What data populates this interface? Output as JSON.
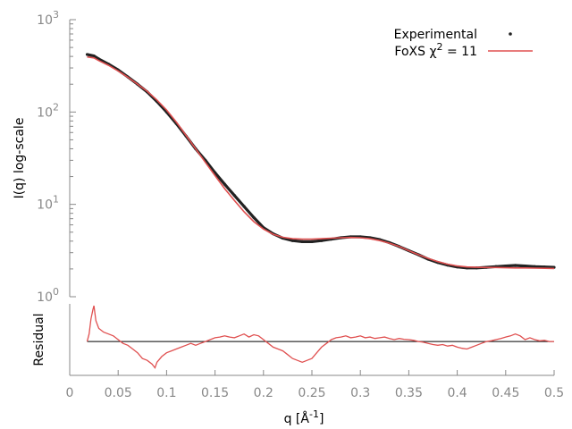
{
  "colors": {
    "experimental": "#222222",
    "fit": "#e05050",
    "residual": "#e05050",
    "zero_line": "#000000",
    "axis": "#888888"
  },
  "chart_data": [
    {
      "type": "line",
      "panel": "top",
      "xlabel": "",
      "ylabel": "I(q) log-scale",
      "yscale": "log",
      "xlim": [
        0,
        0.5
      ],
      "ylim": [
        1,
        1000
      ],
      "x_ticks": [
        "0",
        "0.05",
        "0.1",
        "0.15",
        "0.2",
        "0.25",
        "0.3",
        "0.35",
        "0.4",
        "0.45",
        "0.5"
      ],
      "y_ticks": [
        {
          "value": 1,
          "base": "10",
          "exp": "0"
        },
        {
          "value": 10,
          "base": "10",
          "exp": "1"
        },
        {
          "value": 100,
          "base": "10",
          "exp": "2"
        },
        {
          "value": 1000,
          "base": "10",
          "exp": "3"
        }
      ],
      "legend": {
        "placement": "top-right",
        "entries": [
          {
            "label": "Experimental",
            "marker": "dots"
          },
          {
            "label_prefix": "FoXS χ",
            "label_sup": "2",
            "label_suffix": " = 11",
            "marker": "line"
          }
        ]
      },
      "series": [
        {
          "name": "Experimental",
          "style": "dots",
          "x": [
            0.018,
            0.025,
            0.03,
            0.04,
            0.05,
            0.06,
            0.07,
            0.08,
            0.09,
            0.1,
            0.11,
            0.12,
            0.13,
            0.14,
            0.15,
            0.16,
            0.17,
            0.18,
            0.19,
            0.2,
            0.21,
            0.22,
            0.23,
            0.24,
            0.25,
            0.26,
            0.27,
            0.28,
            0.29,
            0.3,
            0.31,
            0.32,
            0.33,
            0.34,
            0.35,
            0.36,
            0.37,
            0.38,
            0.39,
            0.4,
            0.41,
            0.42,
            0.43,
            0.44,
            0.45,
            0.46,
            0.47,
            0.48,
            0.49,
            0.5
          ],
          "y": [
            420,
            405,
            375,
            330,
            285,
            240,
            200,
            165,
            130,
            100,
            75,
            55,
            40,
            30,
            22,
            16.5,
            12.5,
            9.5,
            7.2,
            5.6,
            4.8,
            4.3,
            4.05,
            3.95,
            3.95,
            4.05,
            4.2,
            4.35,
            4.45,
            4.45,
            4.35,
            4.15,
            3.85,
            3.5,
            3.15,
            2.85,
            2.55,
            2.35,
            2.2,
            2.1,
            2.05,
            2.05,
            2.08,
            2.12,
            2.15,
            2.18,
            2.15,
            2.12,
            2.1,
            2.08
          ]
        },
        {
          "name": "FoXS χ2 = 11",
          "style": "line",
          "x": [
            0.018,
            0.025,
            0.03,
            0.04,
            0.05,
            0.06,
            0.07,
            0.08,
            0.09,
            0.1,
            0.11,
            0.12,
            0.13,
            0.14,
            0.15,
            0.16,
            0.17,
            0.18,
            0.19,
            0.2,
            0.21,
            0.22,
            0.23,
            0.24,
            0.25,
            0.26,
            0.27,
            0.28,
            0.29,
            0.3,
            0.31,
            0.32,
            0.33,
            0.34,
            0.35,
            0.36,
            0.37,
            0.38,
            0.39,
            0.4,
            0.41,
            0.42,
            0.43,
            0.44,
            0.45,
            0.46,
            0.47,
            0.48,
            0.49,
            0.5
          ],
          "y": [
            395,
            385,
            360,
            320,
            278,
            238,
            200,
            168,
            135,
            105,
            78,
            56,
            40,
            28.5,
            20.5,
            14.8,
            11,
            8.3,
            6.5,
            5.4,
            4.75,
            4.4,
            4.25,
            4.2,
            4.2,
            4.25,
            4.3,
            4.35,
            4.38,
            4.35,
            4.25,
            4.05,
            3.8,
            3.5,
            3.15,
            2.85,
            2.6,
            2.4,
            2.25,
            2.15,
            2.1,
            2.08,
            2.07,
            2.07,
            2.06,
            2.05,
            2.05,
            2.04,
            2.03,
            2.02
          ]
        }
      ]
    },
    {
      "type": "line",
      "panel": "bottom",
      "xlabel_main": "q [Å",
      "xlabel_sup": "-1",
      "xlabel_end": "]",
      "ylabel": "Residual",
      "xlim": [
        0,
        0.5
      ],
      "ylim": [
        -0.9,
        1.0
      ],
      "x_ticks": [
        "0",
        "0.05",
        "0.1",
        "0.15",
        "0.2",
        "0.25",
        "0.3",
        "0.35",
        "0.4",
        "0.45",
        "0.5"
      ],
      "zero_line": 0,
      "series": [
        {
          "name": "",
          "style": "line",
          "x": [
            0.018,
            0.02,
            0.022,
            0.024,
            0.025,
            0.027,
            0.03,
            0.035,
            0.04,
            0.045,
            0.05,
            0.055,
            0.06,
            0.065,
            0.07,
            0.075,
            0.08,
            0.085,
            0.088,
            0.09,
            0.095,
            0.1,
            0.105,
            0.11,
            0.115,
            0.12,
            0.125,
            0.13,
            0.135,
            0.14,
            0.145,
            0.15,
            0.155,
            0.16,
            0.165,
            0.17,
            0.175,
            0.18,
            0.185,
            0.19,
            0.195,
            0.2,
            0.205,
            0.21,
            0.215,
            0.22,
            0.225,
            0.23,
            0.235,
            0.24,
            0.245,
            0.25,
            0.255,
            0.26,
            0.265,
            0.27,
            0.275,
            0.28,
            0.285,
            0.29,
            0.295,
            0.3,
            0.305,
            0.31,
            0.315,
            0.32,
            0.325,
            0.33,
            0.335,
            0.34,
            0.345,
            0.35,
            0.355,
            0.36,
            0.365,
            0.37,
            0.375,
            0.38,
            0.385,
            0.39,
            0.395,
            0.4,
            0.405,
            0.41,
            0.415,
            0.42,
            0.425,
            0.43,
            0.435,
            0.44,
            0.445,
            0.45,
            0.455,
            0.46,
            0.465,
            0.47,
            0.475,
            0.48,
            0.485,
            0.49,
            0.495,
            0.5
          ],
          "y": [
            0.0,
            0.2,
            0.6,
            0.85,
            0.95,
            0.55,
            0.35,
            0.25,
            0.2,
            0.15,
            0.05,
            -0.05,
            -0.1,
            -0.2,
            -0.3,
            -0.45,
            -0.5,
            -0.6,
            -0.7,
            -0.55,
            -0.4,
            -0.3,
            -0.25,
            -0.2,
            -0.15,
            -0.1,
            -0.05,
            -0.1,
            -0.05,
            0.0,
            0.05,
            0.1,
            0.12,
            0.15,
            0.12,
            0.1,
            0.15,
            0.2,
            0.12,
            0.18,
            0.15,
            0.05,
            -0.05,
            -0.15,
            -0.2,
            -0.25,
            -0.35,
            -0.45,
            -0.5,
            -0.55,
            -0.5,
            -0.45,
            -0.3,
            -0.15,
            -0.05,
            0.05,
            0.1,
            0.12,
            0.15,
            0.1,
            0.12,
            0.15,
            0.1,
            0.12,
            0.08,
            0.1,
            0.12,
            0.08,
            0.05,
            0.08,
            0.06,
            0.05,
            0.03,
            0.0,
            -0.02,
            -0.05,
            -0.08,
            -0.1,
            -0.08,
            -0.12,
            -0.1,
            -0.15,
            -0.18,
            -0.2,
            -0.15,
            -0.1,
            -0.05,
            0.0,
            0.02,
            0.05,
            0.08,
            0.12,
            0.15,
            0.2,
            0.15,
            0.05,
            0.1,
            0.05,
            0.02,
            0.03,
            0.0,
            0.0
          ]
        }
      ]
    }
  ]
}
